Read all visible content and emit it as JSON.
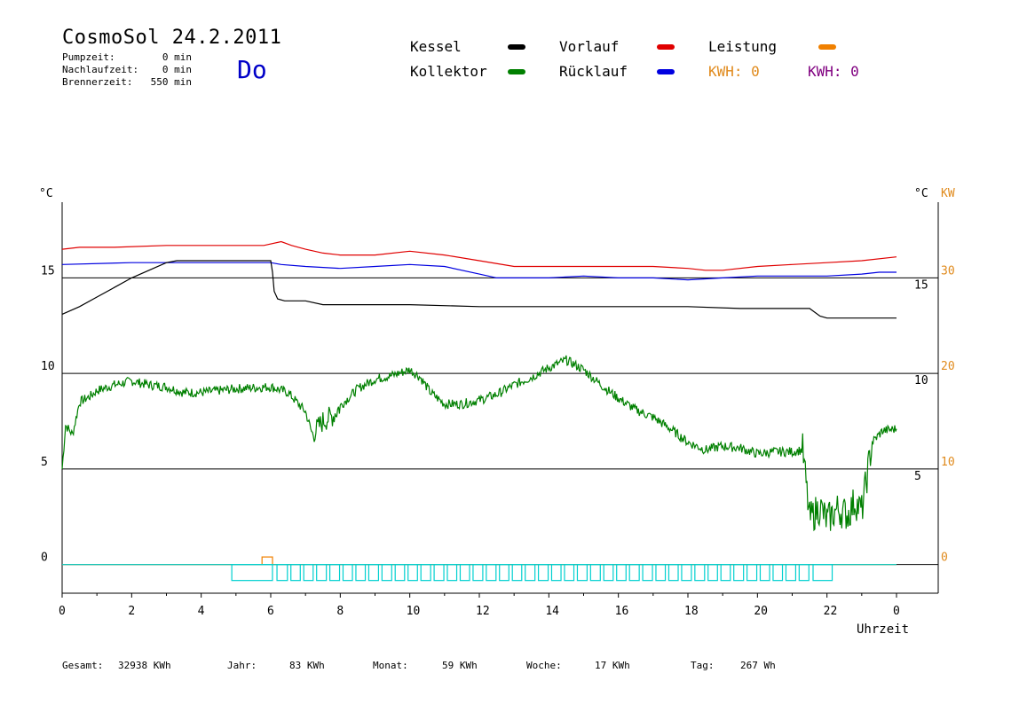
{
  "header": {
    "title": "CosmoSol 24.2.2011",
    "info": [
      {
        "label": "Pumpzeit:",
        "value": "0 min"
      },
      {
        "label": "Nachlaufzeit:",
        "value": "0 min"
      },
      {
        "label": "Brennerzeit:",
        "value": "550 min"
      }
    ],
    "day": "Do"
  },
  "legend": {
    "kessel": "Kessel",
    "kollektor": "Kollektor",
    "vorlauf": "Vorlauf",
    "ruecklauf": "Rücklauf",
    "leistung": "Leistung",
    "kwh1": "KWH: 0",
    "kwh2": "KWH: 0",
    "colors": {
      "kessel": "#000000",
      "kollektor": "#008000",
      "vorlauf": "#e00000",
      "ruecklauf": "#0000e0",
      "leistung": "#f08000",
      "kwh2": "#800080",
      "pump": "#00d0d0"
    }
  },
  "footer": {
    "gesamt_label": "Gesamt:",
    "gesamt_value": "32938 KWh",
    "jahr_label": "Jahr:",
    "jahr_value": "83 KWh",
    "monat_label": "Monat:",
    "monat_value": "59 KWh",
    "woche_label": "Woche:",
    "woche_value": "17 KWh",
    "tag_label": "Tag:",
    "tag_value": "267 Wh"
  },
  "chart_data": {
    "type": "line",
    "xlabel": "Uhrzeit",
    "ylabel_left": "°C",
    "ylabel_right": "°C",
    "ylabel_right2": "KW",
    "xlim": [
      0,
      24
    ],
    "ylim": [
      -1.5,
      18.5
    ],
    "x_ticks": [
      "0",
      "2",
      "4",
      "6",
      "8",
      "10",
      "12",
      "14",
      "16",
      "18",
      "20",
      "22",
      "0"
    ],
    "y_ticks_left": [
      "0",
      "5",
      "10",
      "15"
    ],
    "y_ticks_right": [
      "5",
      "10",
      "15"
    ],
    "y_ticks_kw": [
      "0",
      "10",
      "20",
      "30"
    ],
    "series": [
      {
        "name": "Vorlauf",
        "color": "#e00000",
        "x": [
          0,
          0.5,
          1.5,
          3,
          5.8,
          6.3,
          6.6,
          7,
          7.5,
          8,
          9,
          10,
          11,
          12,
          13,
          14,
          15,
          16,
          17,
          18,
          18.5,
          19,
          20,
          21,
          22,
          23,
          24
        ],
        "y": [
          16.5,
          16.6,
          16.6,
          16.7,
          16.7,
          16.9,
          16.7,
          16.5,
          16.3,
          16.2,
          16.2,
          16.4,
          16.2,
          15.9,
          15.6,
          15.6,
          15.6,
          15.6,
          15.6,
          15.5,
          15.4,
          15.4,
          15.6,
          15.7,
          15.8,
          15.9,
          16.1
        ]
      },
      {
        "name": "Rücklauf",
        "color": "#0000e0",
        "x": [
          0,
          2,
          4,
          6,
          6.3,
          7,
          8,
          9,
          10,
          11,
          12,
          12.5,
          13,
          14,
          15,
          16,
          17,
          18,
          19,
          20,
          21,
          22,
          23,
          23.5,
          24
        ],
        "y": [
          15.7,
          15.8,
          15.8,
          15.8,
          15.7,
          15.6,
          15.5,
          15.6,
          15.7,
          15.6,
          15.2,
          15.0,
          15.0,
          15.0,
          15.1,
          15.0,
          15.0,
          14.9,
          15.0,
          15.1,
          15.1,
          15.1,
          15.2,
          15.3,
          15.3
        ]
      },
      {
        "name": "Kessel",
        "color": "#000000",
        "x": [
          0,
          0.5,
          1,
          1.5,
          2,
          2.5,
          3,
          3.3,
          6,
          6.05,
          6.1,
          6.2,
          6.4,
          7,
          7.5,
          8,
          10,
          12,
          14,
          16,
          18,
          19.5,
          21.5,
          21.8,
          22,
          24
        ],
        "y": [
          13.1,
          13.5,
          14.0,
          14.5,
          15.0,
          15.4,
          15.8,
          15.9,
          15.9,
          15.3,
          14.3,
          13.9,
          13.8,
          13.8,
          13.6,
          13.6,
          13.6,
          13.5,
          13.5,
          13.5,
          13.5,
          13.4,
          13.4,
          13.0,
          12.9,
          12.9
        ]
      },
      {
        "name": "Kollektor",
        "color": "#008000",
        "x": [
          0,
          0.1,
          0.3,
          0.5,
          0.8,
          1,
          1.5,
          2,
          2.5,
          3,
          3.5,
          4,
          5,
          6,
          6.5,
          7,
          7.2,
          7.5,
          7.8,
          8,
          8.5,
          9,
          9.5,
          10,
          10.3,
          10.6,
          11,
          11.5,
          12,
          12.5,
          13,
          13.5,
          14,
          14.5,
          15,
          15.5,
          16,
          16.5,
          17,
          17.5,
          18,
          18.5,
          19,
          19.5,
          20,
          20.5,
          21,
          21.3,
          21.5,
          21.8,
          22,
          22.3,
          22.6,
          22.8,
          23,
          23.3,
          23.6,
          24
        ],
        "y": [
          5,
          7.3,
          6.8,
          8.5,
          8.8,
          9.1,
          9.4,
          9.6,
          9.4,
          9.3,
          9.0,
          9.0,
          9.2,
          9.3,
          9.0,
          8.0,
          6.8,
          7.5,
          7.8,
          8.3,
          9.2,
          9.7,
          9.9,
          10.2,
          9.8,
          9.0,
          8.4,
          8.4,
          8.6,
          8.9,
          9.4,
          9.8,
          10.3,
          10.7,
          10.2,
          9.4,
          8.7,
          8.1,
          7.7,
          7.1,
          6.4,
          6.0,
          6.2,
          6.1,
          5.8,
          5.9,
          5.9,
          6.0,
          2.4,
          3.0,
          2.3,
          2.9,
          2.6,
          3.3,
          2.8,
          6.4,
          7.0,
          7.1
        ]
      },
      {
        "name": "Leistung",
        "color": "#f08000",
        "x": [
          0,
          5.75,
          5.75,
          6.05,
          6.05,
          24
        ],
        "y": [
          0,
          0,
          0.4,
          0.4,
          0,
          0
        ]
      }
    ],
    "pump_pulses": [
      [
        4.88,
        6.05
      ],
      [
        6.18,
        6.48
      ],
      [
        6.58,
        6.85
      ],
      [
        6.95,
        7.22
      ],
      [
        7.32,
        7.6
      ],
      [
        7.7,
        7.98
      ],
      [
        8.08,
        8.35
      ],
      [
        8.45,
        8.72
      ],
      [
        8.82,
        9.1
      ],
      [
        9.2,
        9.48
      ],
      [
        9.58,
        9.85
      ],
      [
        9.95,
        10.22
      ],
      [
        10.32,
        10.6
      ],
      [
        10.7,
        10.98
      ],
      [
        11.08,
        11.35
      ],
      [
        11.45,
        11.72
      ],
      [
        11.82,
        12.1
      ],
      [
        12.2,
        12.48
      ],
      [
        12.58,
        12.85
      ],
      [
        12.95,
        13.22
      ],
      [
        13.32,
        13.6
      ],
      [
        13.7,
        13.98
      ],
      [
        14.08,
        14.35
      ],
      [
        14.45,
        14.72
      ],
      [
        14.82,
        15.1
      ],
      [
        15.2,
        15.48
      ],
      [
        15.58,
        15.85
      ],
      [
        15.95,
        16.22
      ],
      [
        16.32,
        16.6
      ],
      [
        16.7,
        16.98
      ],
      [
        17.08,
        17.35
      ],
      [
        17.45,
        17.72
      ],
      [
        17.82,
        18.1
      ],
      [
        18.2,
        18.48
      ],
      [
        18.58,
        18.85
      ],
      [
        18.95,
        19.22
      ],
      [
        19.32,
        19.6
      ],
      [
        19.7,
        19.98
      ],
      [
        20.08,
        20.35
      ],
      [
        20.45,
        20.72
      ],
      [
        20.82,
        21.1
      ],
      [
        21.2,
        21.48
      ],
      [
        21.6,
        22.15
      ]
    ],
    "grid": "horizontal"
  }
}
